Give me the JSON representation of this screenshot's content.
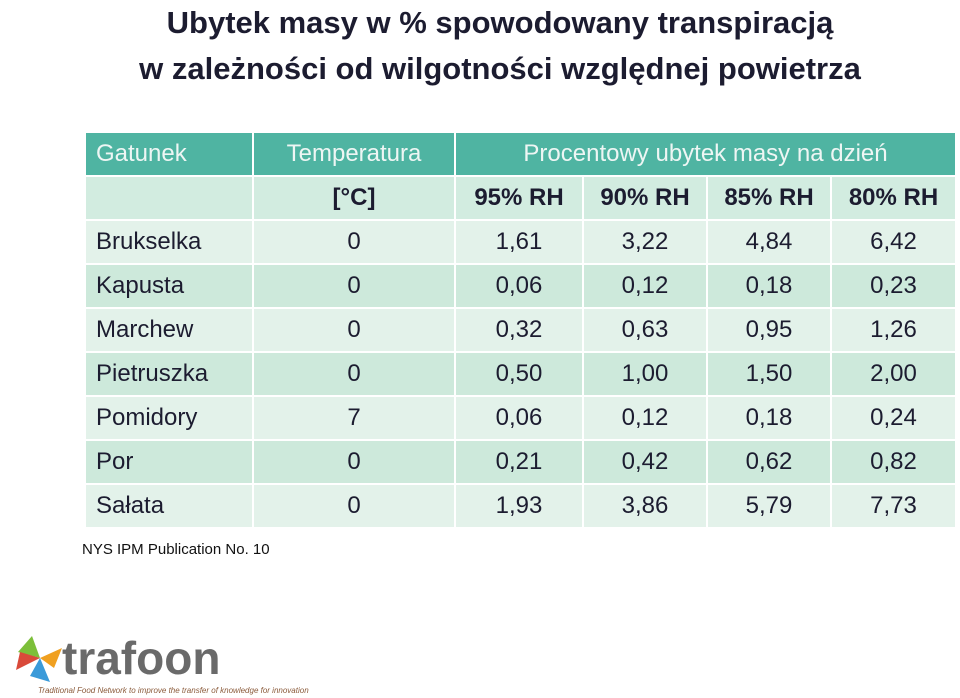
{
  "title": {
    "lines": [
      "Ubytek masy w % spowodowany transpiracją",
      "w zależności od wilgotności względnej powietrza"
    ]
  },
  "table": {
    "header": [
      "Gatunek",
      "Temperatura",
      "Procentowy ubytek masy na dzień"
    ],
    "subheader": [
      "",
      "[°C]",
      "95% RH",
      "90% RH",
      "85% RH",
      "80% RH"
    ],
    "rows": [
      [
        "Brukselka",
        "0",
        "1,61",
        "3,22",
        "4,84",
        "6,42"
      ],
      [
        "Kapusta",
        "0",
        "0,06",
        "0,12",
        "0,18",
        "0,23"
      ],
      [
        "Marchew",
        "0",
        "0,32",
        "0,63",
        "0,95",
        "1,26"
      ],
      [
        "Pietruszka",
        "0",
        "0,50",
        "1,00",
        "1,50",
        "2,00"
      ],
      [
        "Pomidory",
        "7",
        "0,06",
        "0,12",
        "0,18",
        "0,24"
      ],
      [
        "Por",
        "0",
        "0,21",
        "0,42",
        "0,62",
        "0,82"
      ],
      [
        "Sałata",
        "0",
        "1,93",
        "3,86",
        "5,79",
        "7,73"
      ]
    ]
  },
  "footnote": "NYS IPM Publication No. 10",
  "logo": {
    "name": "trafoon",
    "tagline": "Traditional Food Network to improve the transfer of knowledge for innovation"
  }
}
